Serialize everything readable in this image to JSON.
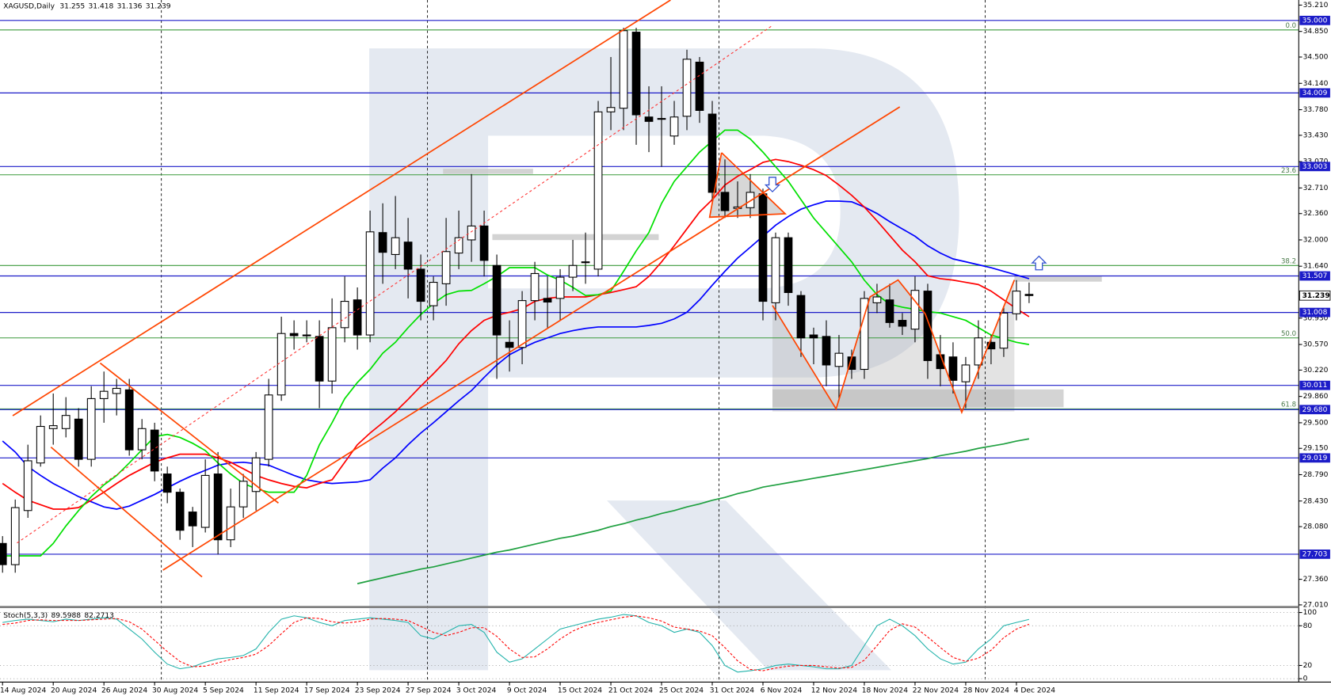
{
  "chart_data": [
    {
      "type": "candlestick",
      "title": "XAGUSD,Daily",
      "categories": [
        "14 Aug 2024",
        null,
        null,
        null,
        "20 Aug 2024",
        null,
        null,
        null,
        "26 Aug 2024",
        null,
        null,
        null,
        "30 Aug 2024",
        null,
        null,
        null,
        "5 Sep 2024",
        null,
        null,
        null,
        "11 Sep 2024",
        null,
        null,
        null,
        "17 Sep 2024",
        null,
        null,
        null,
        "23 Sep 2024",
        null,
        null,
        null,
        "27 Sep 2024",
        null,
        null,
        null,
        "3 Oct 2024",
        null,
        null,
        null,
        "9 Oct 2024",
        null,
        null,
        null,
        "15 Oct 2024",
        null,
        null,
        null,
        "21 Oct 2024",
        null,
        null,
        null,
        "25 Oct 2024",
        null,
        null,
        null,
        "31 Oct 2024",
        null,
        null,
        null,
        "6 Nov 2024",
        null,
        null,
        null,
        "12 Nov 2024",
        null,
        null,
        null,
        "18 Nov 2024",
        null,
        null,
        null,
        "22 Nov 2024",
        null,
        null,
        null,
        "28 Nov 2024",
        null,
        null,
        null,
        "4 Dec 2024",
        null
      ],
      "open": [
        27.85,
        27.56,
        28.3,
        28.95,
        29.42,
        29.42,
        29.55,
        29.0,
        29.83,
        29.9,
        29.95,
        29.13,
        29.4,
        28.8,
        28.55,
        28.28,
        28.07,
        28.8,
        27.9,
        28.35,
        28.56,
        29.0,
        29.88,
        30.72,
        30.7,
        30.68,
        30.07,
        30.8,
        31.18,
        30.7,
        32.1,
        31.8,
        31.97,
        31.6,
        31.1,
        31.4,
        31.82,
        32.0,
        32.19,
        31.65,
        30.6,
        30.53,
        31.17,
        31.2,
        31.2,
        31.49,
        31.7,
        31.6,
        33.75,
        33.8,
        34.84,
        33.68,
        33.65,
        33.42,
        33.69,
        34.43,
        33.72,
        32.65,
        32.43,
        32.44,
        32.63,
        31.14,
        32.03,
        31.24,
        30.7,
        30.68,
        30.27,
        30.4,
        30.23,
        31.14,
        31.18,
        30.9,
        30.78,
        31.3,
        30.43,
        30.4,
        30.06,
        30.29,
        30.6,
        30.52,
        30.99,
        31.255
      ],
      "high": [
        27.95,
        28.45,
        29.2,
        29.6,
        29.9,
        29.85,
        29.7,
        30.0,
        30.2,
        30.1,
        30.1,
        29.55,
        29.5,
        28.9,
        28.6,
        28.35,
        29.0,
        29.1,
        28.6,
        28.8,
        29.1,
        30.1,
        30.95,
        30.9,
        30.9,
        30.9,
        31.2,
        31.5,
        31.35,
        32.4,
        32.5,
        32.6,
        32.3,
        31.8,
        31.5,
        32.3,
        32.4,
        32.9,
        32.4,
        31.8,
        30.9,
        31.3,
        31.7,
        31.5,
        31.6,
        32.0,
        32.1,
        33.9,
        34.5,
        34.9,
        34.9,
        34.1,
        34.1,
        33.9,
        34.6,
        34.5,
        33.9,
        33.1,
        32.8,
        32.9,
        32.7,
        32.1,
        32.1,
        31.3,
        30.8,
        30.9,
        30.7,
        30.5,
        31.3,
        31.4,
        31.4,
        31.0,
        31.5,
        31.4,
        30.7,
        30.6,
        30.4,
        30.9,
        30.7,
        31.1,
        31.45,
        31.418
      ],
      "low": [
        27.45,
        27.45,
        28.2,
        28.9,
        29.2,
        29.3,
        28.9,
        28.9,
        29.5,
        29.6,
        29.05,
        29.0,
        28.7,
        28.4,
        27.9,
        27.8,
        28.0,
        27.7,
        27.8,
        28.2,
        28.3,
        28.9,
        29.8,
        30.5,
        30.6,
        29.7,
        29.9,
        30.6,
        30.5,
        30.6,
        31.4,
        31.6,
        31.2,
        30.9,
        30.9,
        31.1,
        31.6,
        31.7,
        31.5,
        30.1,
        30.2,
        30.3,
        30.9,
        30.8,
        30.9,
        31.3,
        31.4,
        31.5,
        33.5,
        33.5,
        33.3,
        33.2,
        33.0,
        33.3,
        33.5,
        33.6,
        32.5,
        32.3,
        32.3,
        32.3,
        30.9,
        30.9,
        31.1,
        30.4,
        30.3,
        30.0,
        29.8,
        30.1,
        30.1,
        31.0,
        30.8,
        30.7,
        30.6,
        30.1,
        30.0,
        29.9,
        29.7,
        30.1,
        30.3,
        30.4,
        30.9,
        31.136
      ],
      "close": [
        27.56,
        28.34,
        28.98,
        29.45,
        29.46,
        29.6,
        29.0,
        29.83,
        29.93,
        29.97,
        29.13,
        29.42,
        28.84,
        28.55,
        28.03,
        28.09,
        28.78,
        27.9,
        28.35,
        28.7,
        29.02,
        29.88,
        30.72,
        30.69,
        30.7,
        30.07,
        30.8,
        31.16,
        30.7,
        32.11,
        31.83,
        32.03,
        31.6,
        31.16,
        31.42,
        31.84,
        32.03,
        32.19,
        31.72,
        30.7,
        30.53,
        31.17,
        31.54,
        31.15,
        31.49,
        31.65,
        31.7,
        33.75,
        33.81,
        34.86,
        33.71,
        33.62,
        33.66,
        33.68,
        34.47,
        33.77,
        32.65,
        32.4,
        32.45,
        32.65,
        31.16,
        32.03,
        31.28,
        30.66,
        30.66,
        30.29,
        30.45,
        30.23,
        31.2,
        31.22,
        30.87,
        30.82,
        31.31,
        30.35,
        30.24,
        30.08,
        30.29,
        30.66,
        30.51,
        31.0,
        31.3,
        31.239
      ],
      "up_color": "#ffffff",
      "down_color": "#000000",
      "overlays": [
        {
          "color": "#0000ff",
          "values": [
            29.25,
            29.1,
            28.9,
            28.78,
            28.67,
            28.58,
            28.49,
            28.42,
            28.35,
            28.32,
            28.36,
            28.44,
            28.52,
            28.61,
            28.7,
            28.78,
            28.85,
            28.92,
            28.95,
            28.96,
            28.94,
            28.92,
            28.85,
            28.78,
            28.72,
            28.69,
            28.67,
            28.68,
            28.69,
            28.72,
            28.88,
            29.02,
            29.2,
            29.36,
            29.5,
            29.65,
            29.8,
            29.94,
            30.12,
            30.29,
            30.43,
            30.52,
            30.6,
            30.66,
            30.72,
            30.76,
            30.79,
            30.81,
            30.81,
            30.81,
            30.81,
            30.83,
            30.86,
            30.92,
            31.01,
            31.18,
            31.38,
            31.57,
            31.75,
            31.9,
            32.05,
            32.2,
            32.32,
            32.42,
            32.48,
            32.53,
            32.53,
            32.52,
            32.45,
            32.36,
            32.25,
            32.15,
            32.05,
            31.92,
            31.82,
            31.74,
            31.7,
            31.66,
            31.62,
            31.57,
            31.52,
            31.47
          ]
        },
        {
          "color": "#ff0000",
          "values": [
            28.67,
            28.55,
            28.44,
            28.38,
            28.32,
            28.32,
            28.34,
            28.44,
            28.55,
            28.67,
            28.78,
            28.87,
            28.96,
            29.02,
            29.07,
            29.07,
            29.07,
            29.02,
            28.96,
            28.87,
            28.78,
            28.72,
            28.67,
            28.63,
            28.61,
            28.67,
            28.72,
            28.96,
            29.2,
            29.36,
            29.5,
            29.65,
            29.82,
            30.0,
            30.17,
            30.35,
            30.58,
            30.76,
            30.9,
            30.97,
            31.01,
            31.06,
            31.16,
            31.2,
            31.22,
            31.22,
            31.22,
            31.25,
            31.28,
            31.32,
            31.36,
            31.5,
            31.7,
            31.92,
            32.15,
            32.38,
            32.55,
            32.75,
            32.87,
            32.96,
            33.06,
            33.1,
            33.07,
            33.02,
            32.96,
            32.88,
            32.75,
            32.61,
            32.45,
            32.26,
            32.06,
            31.86,
            31.7,
            31.51,
            31.47,
            31.45,
            31.42,
            31.39,
            31.3,
            31.18,
            31.06,
            30.95
          ]
        },
        {
          "color": "#00e000",
          "values": [
            27.68,
            27.68,
            27.68,
            27.68,
            27.85,
            28.09,
            28.3,
            28.49,
            28.65,
            28.78,
            28.95,
            29.13,
            29.31,
            29.34,
            29.3,
            29.22,
            29.12,
            28.95,
            28.8,
            28.67,
            28.6,
            28.55,
            28.55,
            28.55,
            28.78,
            29.2,
            29.5,
            29.83,
            30.05,
            30.23,
            30.45,
            30.6,
            30.8,
            30.98,
            31.13,
            31.25,
            31.3,
            31.31,
            31.4,
            31.5,
            31.62,
            31.62,
            31.62,
            31.52,
            31.45,
            31.35,
            31.24,
            31.25,
            31.3,
            31.57,
            31.85,
            32.1,
            32.5,
            32.8,
            33.0,
            33.2,
            33.35,
            33.5,
            33.5,
            33.38,
            33.2,
            33.0,
            32.8,
            32.55,
            32.3,
            32.1,
            31.9,
            31.7,
            31.45,
            31.25,
            31.12,
            31.08,
            31.05,
            31.02,
            31.0,
            30.95,
            30.9,
            30.8,
            30.7,
            30.65,
            30.6,
            30.57
          ]
        },
        {
          "color": "#1fa040",
          "values": [
            null,
            null,
            null,
            null,
            null,
            null,
            null,
            null,
            null,
            null,
            null,
            null,
            null,
            null,
            null,
            null,
            null,
            null,
            null,
            null,
            null,
            null,
            null,
            null,
            null,
            null,
            null,
            null,
            27.3,
            27.34,
            27.38,
            27.42,
            27.46,
            27.5,
            27.53,
            27.57,
            27.61,
            27.65,
            27.69,
            27.73,
            27.76,
            27.8,
            27.84,
            27.88,
            27.92,
            27.95,
            27.99,
            28.03,
            28.08,
            28.12,
            28.17,
            28.21,
            28.26,
            28.3,
            28.35,
            28.39,
            28.44,
            28.48,
            28.53,
            28.57,
            28.62,
            28.65,
            28.68,
            28.71,
            28.74,
            28.77,
            28.8,
            28.83,
            28.86,
            28.89,
            28.92,
            28.95,
            28.98,
            29.01,
            29.05,
            29.08,
            29.11,
            29.15,
            29.18,
            29.21,
            29.25,
            29.28
          ]
        }
      ],
      "levels": [
        {
          "value": 35.0,
          "label": "35.000"
        },
        {
          "value": 34.009,
          "label": "34.009"
        },
        {
          "value": 33.003,
          "label": "33.003"
        },
        {
          "value": 31.507,
          "label": "31.507"
        },
        {
          "value": 31.008,
          "label": "31.008"
        },
        {
          "value": 30.011,
          "label": "30.011"
        },
        {
          "value": 29.68,
          "label": "29.680"
        },
        {
          "value": 29.019,
          "label": "29.019"
        },
        {
          "value": 27.703,
          "label": "27.703"
        }
      ],
      "level_color": "#1c1cc8",
      "fib_levels": [
        {
          "value": 34.87,
          "label": "0.0"
        },
        {
          "value": 32.89,
          "label": "23.6"
        },
        {
          "value": 31.65,
          "label": "38.2"
        },
        {
          "value": 30.66,
          "label": "50.0"
        },
        {
          "value": 29.69,
          "label": "61.8"
        }
      ],
      "fib_color": "#3c9a3c",
      "ylim": [
        27.01,
        35.21
      ],
      "yticks": [
        {
          "value": 35.21,
          "label": "35.210"
        },
        {
          "value": 34.85,
          "label": "34.850"
        },
        {
          "value": 34.5,
          "label": "34.500"
        },
        {
          "value": 34.14,
          "label": "34.140"
        },
        {
          "value": 33.78,
          "label": "33.780"
        },
        {
          "value": 33.43,
          "label": "33.430"
        },
        {
          "value": 33.07,
          "label": "33.070"
        },
        {
          "value": 32.71,
          "label": "32.710"
        },
        {
          "value": 32.36,
          "label": "32.360"
        },
        {
          "value": 32.0,
          "label": "32.000"
        },
        {
          "value": 31.64,
          "label": "31.640"
        },
        {
          "value": 30.93,
          "label": "30.930"
        },
        {
          "value": 30.57,
          "label": "30.570"
        },
        {
          "value": 30.22,
          "label": "30.220"
        },
        {
          "value": 29.86,
          "label": "29.860"
        },
        {
          "value": 29.5,
          "label": "29.500"
        },
        {
          "value": 29.15,
          "label": "29.150"
        },
        {
          "value": 28.79,
          "label": "28.790"
        },
        {
          "value": 28.43,
          "label": "28.430"
        },
        {
          "value": 28.08,
          "label": "28.080"
        },
        {
          "value": 27.36,
          "label": "27.360"
        },
        {
          "value": 27.01,
          "label": "27.010"
        }
      ],
      "grid": false
    },
    {
      "type": "line",
      "title": "Stoch(5,3,3)",
      "series": [
        {
          "color": "#20b2aa",
          "dash": false,
          "values": [
            85,
            88,
            90,
            88,
            86,
            90,
            88,
            90,
            92,
            90,
            75,
            60,
            40,
            22,
            15,
            18,
            25,
            30,
            32,
            35,
            45,
            70,
            90,
            95,
            92,
            85,
            80,
            88,
            90,
            92,
            90,
            88,
            85,
            65,
            60,
            70,
            80,
            82,
            70,
            40,
            25,
            30,
            45,
            60,
            75,
            80,
            85,
            90,
            93,
            97,
            95,
            85,
            80,
            70,
            75,
            70,
            50,
            20,
            10,
            12,
            15,
            20,
            22,
            20,
            18,
            15,
            15,
            20,
            50,
            80,
            90,
            80,
            65,
            45,
            30,
            22,
            25,
            45,
            60,
            80,
            85,
            89.5988
          ]
        },
        {
          "color": "#ff0000",
          "dash": true,
          "values": [
            82,
            84,
            88,
            89,
            88,
            88,
            88,
            89,
            90,
            91,
            86,
            75,
            58,
            41,
            26,
            18,
            19,
            24,
            29,
            32,
            37,
            50,
            68,
            85,
            92,
            91,
            86,
            84,
            86,
            90,
            91,
            90,
            88,
            79,
            70,
            65,
            70,
            77,
            77,
            64,
            45,
            32,
            33,
            45,
            60,
            72,
            80,
            85,
            89,
            93,
            95,
            92,
            87,
            78,
            75,
            72,
            65,
            47,
            27,
            14,
            12,
            16,
            19,
            20,
            20,
            18,
            16,
            17,
            28,
            50,
            73,
            83,
            78,
            63,
            47,
            32,
            26,
            31,
            43,
            62,
            75,
            82.2713
          ]
        }
      ],
      "ylim": [
        0,
        100
      ],
      "yticks": [
        100,
        80,
        20,
        0
      ],
      "grid": true
    }
  ]
}
